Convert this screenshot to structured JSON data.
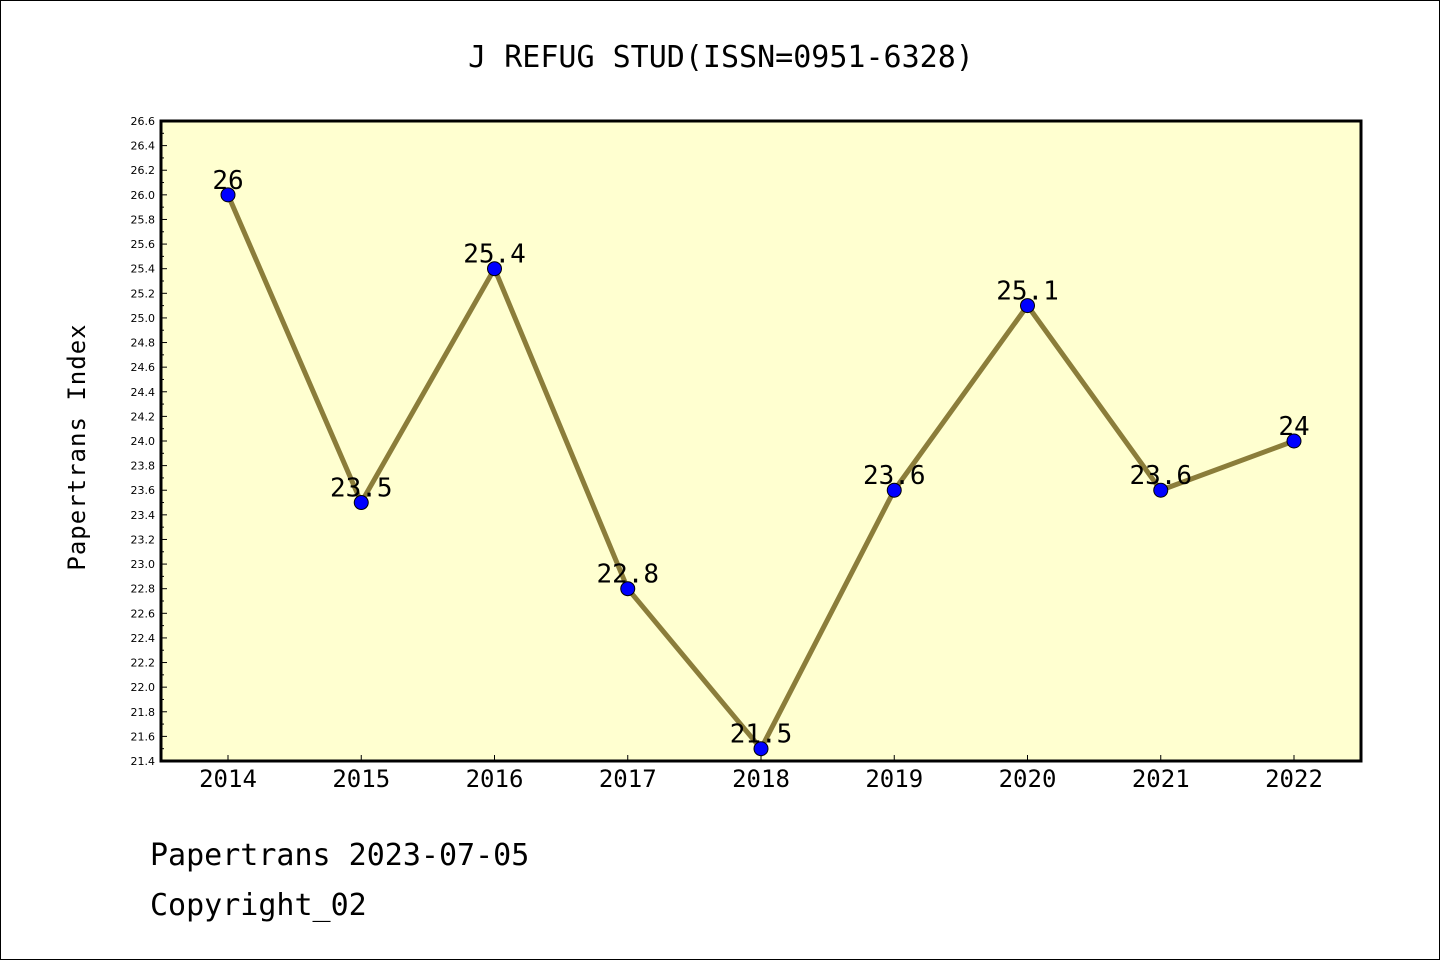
{
  "chart_data": {
    "type": "line",
    "title": "J REFUG STUD(ISSN=0951-6328)",
    "ylabel": "Papertrans Index",
    "xlabel": "",
    "categories": [
      "2014",
      "2015",
      "2016",
      "2017",
      "2018",
      "2019",
      "2020",
      "2021",
      "2022"
    ],
    "values": [
      26,
      23.5,
      25.4,
      22.8,
      21.5,
      23.6,
      25.1,
      23.6,
      24
    ],
    "data_labels": [
      "26",
      "23.5",
      "25.4",
      "22.8",
      "21.5",
      "23.6",
      "25.1",
      "23.6",
      "24"
    ],
    "ylim": [
      21.4,
      26.6
    ],
    "yticks": [
      "21.4",
      "21.6",
      "21.8",
      "22.0",
      "22.2",
      "22.4",
      "22.6",
      "22.8",
      "23.0",
      "23.2",
      "23.4",
      "23.6",
      "23.8",
      "24.0",
      "24.2",
      "24.4",
      "24.6",
      "24.8",
      "25.0",
      "25.2",
      "25.4",
      "25.6",
      "25.8",
      "26.0",
      "26.2",
      "26.4",
      "26.6"
    ],
    "colors": {
      "plot_background": "#ffffd0",
      "line": "#8b7d3a",
      "marker": "#0000ff"
    },
    "grid": false,
    "legend": "none"
  },
  "footer": {
    "line1": "Papertrans 2023-07-05",
    "line2": "Copyright_02"
  }
}
